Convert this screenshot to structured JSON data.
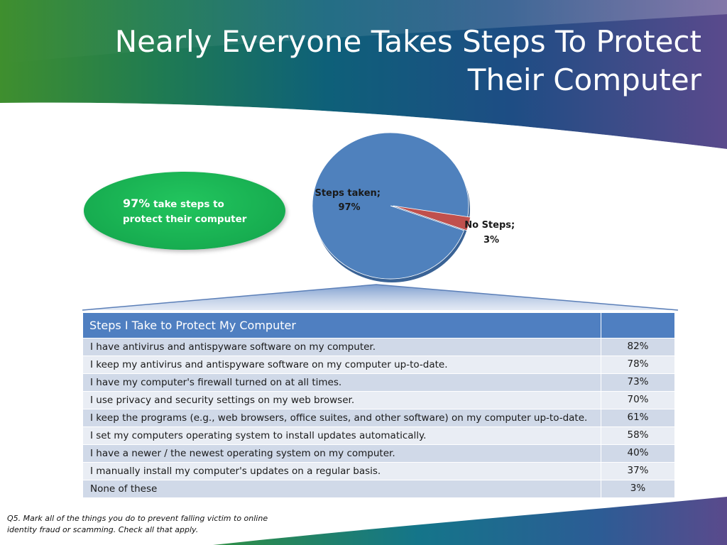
{
  "title": "Nearly Everyone Takes Steps To Protect Their Computer",
  "callout": {
    "value": "97%",
    "text": "take steps to protect their computer"
  },
  "chart_data": {
    "type": "pie",
    "slices": [
      {
        "label": "Steps taken;",
        "display": "97%",
        "value": 97,
        "color": "#4f81bd"
      },
      {
        "label": "No Steps;",
        "display": "3%",
        "value": 3,
        "color": "#c0504d"
      }
    ]
  },
  "table": {
    "header": "Steps I Take to Protect My Computer",
    "rows": [
      {
        "label": "I have antivirus and antispyware software on my computer.",
        "value": "82%"
      },
      {
        "label": "I keep my antivirus and antispyware software on my computer up-to-date.",
        "value": "78%"
      },
      {
        "label": "I have my computer's firewall turned on at all times.",
        "value": "73%"
      },
      {
        "label": "I use privacy and security settings on my web browser.",
        "value": "70%"
      },
      {
        "label": "I keep the programs (e.g., web browsers, office suites, and other software) on my computer up-to-date.",
        "value": "61%"
      },
      {
        "label": "I set my computers operating system to install updates automatically.",
        "value": "58%"
      },
      {
        "label": "I have a newer / the newest operating system on my computer.",
        "value": "40%"
      },
      {
        "label": "I manually install my computer's updates on a regular basis.",
        "value": "37%"
      },
      {
        "label": "None of these",
        "value": "3%"
      }
    ]
  },
  "footnote": "Q5.  Mark all of the things you do to prevent falling victim to online identity fraud or scamming.  Check all that apply."
}
